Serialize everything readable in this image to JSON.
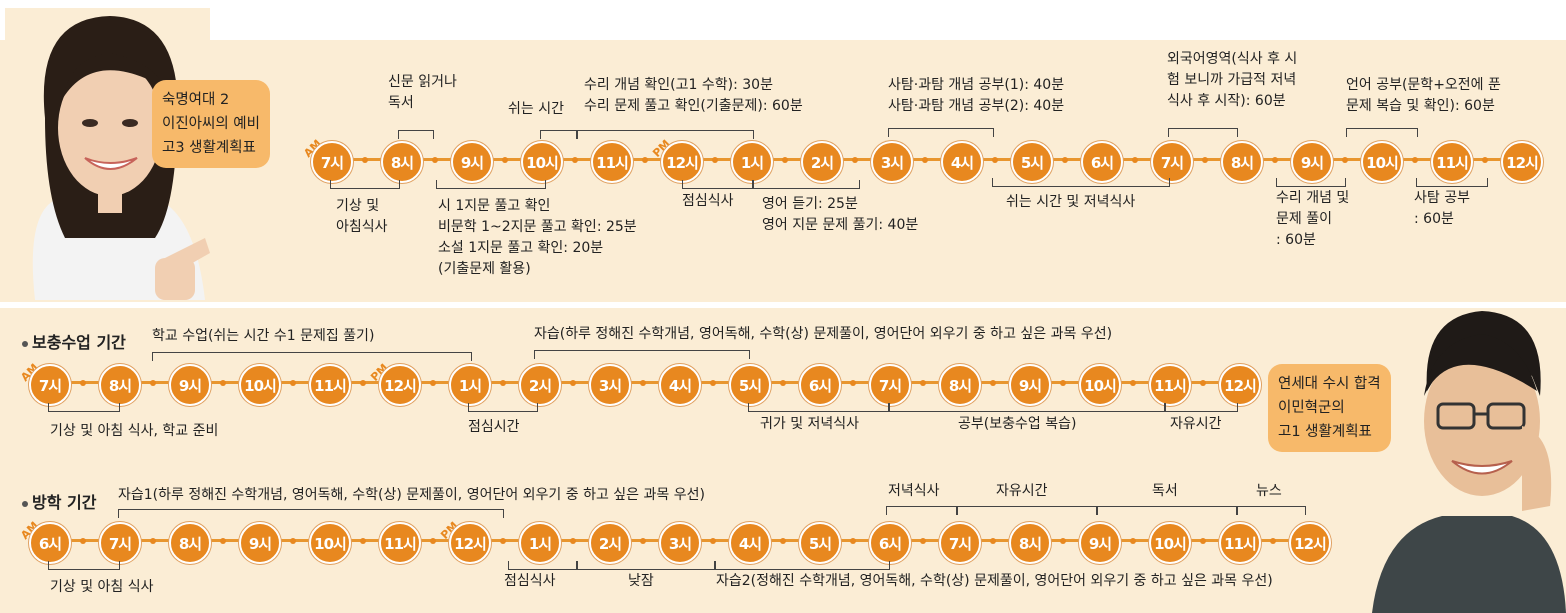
{
  "section1": {
    "profile": [
      "숙명여대 2",
      "이진아씨의 예비",
      "고3 생활계획표"
    ],
    "ampm": [
      "AM",
      "PM"
    ],
    "nodes": [
      "7시",
      "8시",
      "9시",
      "10시",
      "11시",
      "12시",
      "1시",
      "2시",
      "3시",
      "4시",
      "5시",
      "6시",
      "7시",
      "8시",
      "9시",
      "10시",
      "11시",
      "12시"
    ],
    "top": {
      "newspaper": [
        "신문 읽거나",
        "독서"
      ],
      "rest": "쉬는 시간",
      "math": [
        "수리 개념 확인(고1 수학): 30분",
        "수리 문제 풀고 확인(기출문제): 60분"
      ],
      "social": [
        "사탐·과탐 개념 공부(1): 40분",
        "사탐·과탐 개념 공부(2): 40분"
      ],
      "foreign": [
        "외국어영역(식사 후 시",
        "험 보니까 가급적 저녁",
        "식사 후 시작): 60분"
      ],
      "korean": [
        "언어 공부(문학+오전에 푼",
        "문제 복습 및 확인): 60분"
      ]
    },
    "bottom": {
      "wake": [
        "기상 및",
        "아침식사"
      ],
      "poem": [
        "시 1지문 풀고 확인",
        "비문학 1~2지문 풀고 확인: 25분",
        "소설 1지문 풀고 확인: 20분",
        "(기출문제 활용)"
      ],
      "lunch": "점심식사",
      "english": [
        "영어 듣기: 25분",
        "영어 지문 문제 풀기: 40분"
      ],
      "dinner": "쉬는 시간 및 저녁식사",
      "math2": [
        "수리 개념 및",
        "문제 풀이",
        ": 60분"
      ],
      "social2": [
        "사탐 공부",
        ": 60분"
      ]
    }
  },
  "section2": {
    "title": "보충수업 기간",
    "ampm": [
      "AM",
      "PM"
    ],
    "nodes": [
      "7시",
      "8시",
      "9시",
      "10시",
      "11시",
      "12시",
      "1시",
      "2시",
      "3시",
      "4시",
      "5시",
      "6시",
      "7시",
      "8시",
      "9시",
      "10시",
      "11시",
      "12시"
    ],
    "top": {
      "school": "학교 수업(쉬는 시간 수1 문제집 풀기)",
      "self": "자습(하루 정해진 수학개념, 영어독해, 수학(상) 문제풀이, 영어단어 외우기 중 하고 싶은 과목 우선)"
    },
    "bottom": {
      "wake": "기상 및 아침 식사, 학교 준비",
      "lunch": "점심시간",
      "home": "귀가 및 저녁식사",
      "study": "공부(보충수업 복습)",
      "free": "자유시간"
    },
    "profile": [
      "연세대 수시 합격",
      "이민혁군의",
      "고1 생활계획표"
    ]
  },
  "section3": {
    "title": "방학 기간",
    "ampm": [
      "AM",
      "PM"
    ],
    "nodes": [
      "6시",
      "7시",
      "8시",
      "9시",
      "10시",
      "11시",
      "12시",
      "1시",
      "2시",
      "3시",
      "4시",
      "5시",
      "6시",
      "7시",
      "8시",
      "9시",
      "10시",
      "11시",
      "12시"
    ],
    "top": {
      "self1": "자습1(하루 정해진 수학개념, 영어독해, 수학(상) 문제풀이, 영어단어 외우기 중 하고 싶은 과목 우선)",
      "dinner": "저녁식사",
      "free": "자유시간",
      "read": "독서",
      "news": "뉴스"
    },
    "bottom": {
      "wake": "기상 및 아침 식사",
      "lunch": "점심식사",
      "nap": "낮잠",
      "self2": "자습2(정해진 수학개념, 영어독해, 수학(상) 문제풀이, 영어단어 외우기 중 하고 싶은 과목 우선)"
    }
  },
  "colors": {
    "node": "#e8881f",
    "panel": "#fbedd5",
    "bubble": "#f7b96a"
  }
}
